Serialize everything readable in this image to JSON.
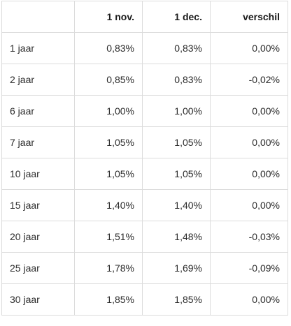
{
  "table": {
    "headers": [
      "",
      "1 nov.",
      "1 dec.",
      "verschil"
    ],
    "rows": [
      [
        "1 jaar",
        "0,83%",
        "0,83%",
        "0,00%"
      ],
      [
        "2 jaar",
        "0,85%",
        "0,83%",
        "-0,02%"
      ],
      [
        "6 jaar",
        "1,00%",
        "1,00%",
        "0,00%"
      ],
      [
        "7 jaar",
        "1,05%",
        "1,05%",
        "0,00%"
      ],
      [
        "10 jaar",
        "1,05%",
        "1,05%",
        "0,00%"
      ],
      [
        "15 jaar",
        "1,40%",
        "1,40%",
        "0,00%"
      ],
      [
        "20 jaar",
        "1,51%",
        "1,48%",
        "-0,03%"
      ],
      [
        "25 jaar",
        "1,78%",
        "1,69%",
        "-0,09%"
      ],
      [
        "30 jaar",
        "1,85%",
        "1,85%",
        "0,00%"
      ]
    ]
  }
}
